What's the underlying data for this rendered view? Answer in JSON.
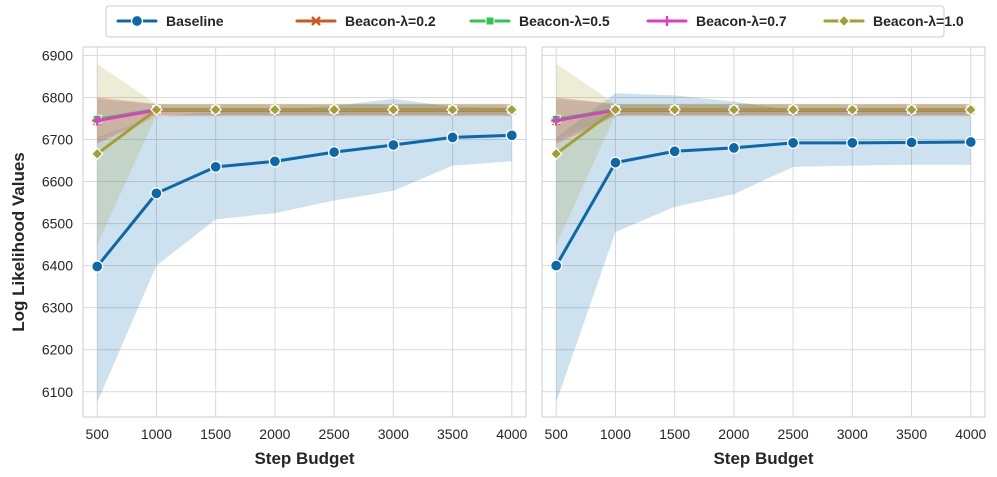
{
  "figure": {
    "ylabel": "Log Likelihood Values",
    "xlabel": "Step Budget"
  },
  "legend": {
    "items": [
      {
        "label": "Baseline",
        "color": "#0b69aa",
        "marker": "circle"
      },
      {
        "label": "Beacon-λ=0.2",
        "color": "#cc5a1e",
        "marker": "x"
      },
      {
        "label": "Beacon-λ=0.5",
        "color": "#2dc653",
        "marker": "square"
      },
      {
        "label": "Beacon-λ=0.7",
        "color": "#e03cc6",
        "marker": "plus"
      },
      {
        "label": "Beacon-λ=1.0",
        "color": "#a39f34",
        "marker": "diamond"
      }
    ]
  },
  "chart_data": [
    {
      "type": "line",
      "title": "",
      "xlabel": "Step Budget",
      "ylabel": "Log Likelihood Values",
      "x": [
        500,
        1000,
        1500,
        2000,
        2500,
        3000,
        3500,
        4000
      ],
      "xlim": [
        380,
        4120
      ],
      "ylim": [
        6040,
        6920
      ],
      "xticks": [
        500,
        1000,
        1500,
        2000,
        2500,
        3000,
        3500,
        4000
      ],
      "yticks": [
        6100,
        6200,
        6300,
        6400,
        6500,
        6600,
        6700,
        6800,
        6900
      ],
      "grid": true,
      "series": [
        {
          "name": "Baseline",
          "color": "#0b69aa",
          "marker": "circle",
          "values": [
            6398,
            6572,
            6635,
            6648,
            6670,
            6687,
            6705,
            6710
          ],
          "lower": [
            6075,
            6400,
            6510,
            6525,
            6555,
            6578,
            6638,
            6648
          ],
          "upper": [
            6705,
            6755,
            6765,
            6770,
            6780,
            6797,
            6778,
            6775
          ]
        },
        {
          "name": "Beacon-λ=0.2",
          "color": "#cc5a1e",
          "marker": "x",
          "values": [
            6745,
            6770,
            6770,
            6770,
            6770,
            6770,
            6770,
            6770
          ],
          "lower": [
            6690,
            6755,
            6755,
            6755,
            6755,
            6755,
            6755,
            6755
          ],
          "upper": [
            6800,
            6785,
            6785,
            6785,
            6785,
            6785,
            6785,
            6785
          ]
        },
        {
          "name": "Beacon-λ=0.5",
          "color": "#2dc653",
          "marker": "square",
          "values": [
            6748,
            6771,
            6771,
            6771,
            6771,
            6771,
            6771,
            6771
          ],
          "lower": [
            6700,
            6758,
            6758,
            6758,
            6758,
            6758,
            6758,
            6758
          ],
          "upper": [
            6795,
            6784,
            6784,
            6784,
            6784,
            6784,
            6784,
            6784
          ]
        },
        {
          "name": "Beacon-λ=0.7",
          "color": "#e03cc6",
          "marker": "plus",
          "values": [
            6745,
            6770,
            6770,
            6770,
            6770,
            6770,
            6770,
            6770
          ],
          "lower": [
            6690,
            6757,
            6757,
            6757,
            6757,
            6757,
            6757,
            6757
          ],
          "upper": [
            6800,
            6783,
            6783,
            6783,
            6783,
            6783,
            6783,
            6783
          ]
        },
        {
          "name": "Beacon-λ=1.0",
          "color": "#a39f34",
          "marker": "diamond",
          "values": [
            6666,
            6771,
            6771,
            6771,
            6771,
            6771,
            6771,
            6771
          ],
          "lower": [
            6450,
            6758,
            6758,
            6758,
            6758,
            6758,
            6758,
            6758
          ],
          "upper": [
            6880,
            6784,
            6784,
            6784,
            6784,
            6784,
            6784,
            6784
          ]
        }
      ]
    },
    {
      "type": "line",
      "title": "",
      "xlabel": "Step Budget",
      "ylabel": "",
      "x": [
        500,
        1000,
        1500,
        2000,
        2500,
        3000,
        3500,
        4000
      ],
      "xlim": [
        380,
        4120
      ],
      "ylim": [
        6040,
        6920
      ],
      "xticks": [
        500,
        1000,
        1500,
        2000,
        2500,
        3000,
        3500,
        4000
      ],
      "yticks": [
        6100,
        6200,
        6300,
        6400,
        6500,
        6600,
        6700,
        6800,
        6900
      ],
      "grid": true,
      "series": [
        {
          "name": "Baseline",
          "color": "#0b69aa",
          "marker": "circle",
          "values": [
            6400,
            6645,
            6672,
            6680,
            6692,
            6692,
            6693,
            6694
          ],
          "lower": [
            6075,
            6480,
            6540,
            6570,
            6635,
            6638,
            6640,
            6640
          ],
          "upper": [
            6705,
            6810,
            6805,
            6790,
            6770,
            6770,
            6770,
            6770
          ]
        },
        {
          "name": "Beacon-λ=0.2",
          "color": "#cc5a1e",
          "marker": "x",
          "values": [
            6745,
            6770,
            6770,
            6770,
            6770,
            6770,
            6770,
            6770
          ],
          "lower": [
            6690,
            6755,
            6755,
            6755,
            6755,
            6755,
            6755,
            6755
          ],
          "upper": [
            6800,
            6785,
            6785,
            6785,
            6785,
            6785,
            6785,
            6785
          ]
        },
        {
          "name": "Beacon-λ=0.5",
          "color": "#2dc653",
          "marker": "square",
          "values": [
            6748,
            6771,
            6771,
            6771,
            6771,
            6771,
            6771,
            6771
          ],
          "lower": [
            6700,
            6758,
            6758,
            6758,
            6758,
            6758,
            6758,
            6758
          ],
          "upper": [
            6795,
            6784,
            6784,
            6784,
            6784,
            6784,
            6784,
            6784
          ]
        },
        {
          "name": "Beacon-λ=0.7",
          "color": "#e03cc6",
          "marker": "plus",
          "values": [
            6745,
            6770,
            6770,
            6770,
            6770,
            6770,
            6770,
            6770
          ],
          "lower": [
            6690,
            6757,
            6757,
            6757,
            6757,
            6757,
            6757,
            6757
          ],
          "upper": [
            6800,
            6783,
            6783,
            6783,
            6783,
            6783,
            6783,
            6783
          ]
        },
        {
          "name": "Beacon-λ=1.0",
          "color": "#a39f34",
          "marker": "diamond",
          "values": [
            6666,
            6771,
            6771,
            6771,
            6771,
            6771,
            6771,
            6771
          ],
          "lower": [
            6450,
            6758,
            6758,
            6758,
            6758,
            6758,
            6758,
            6758
          ],
          "upper": [
            6880,
            6784,
            6784,
            6784,
            6784,
            6784,
            6784,
            6784
          ]
        }
      ]
    }
  ]
}
